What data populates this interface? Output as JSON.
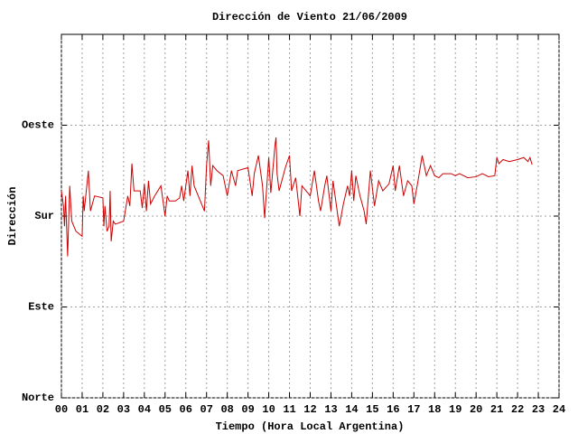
{
  "chart_data": {
    "type": "line",
    "title": "Dirección de Viento 21/06/2009",
    "xlabel": "Tiempo (Hora Local Argentina)",
    "ylabel": "Dirección",
    "color": "#cc0000",
    "grid": true,
    "xlim": [
      0,
      24
    ],
    "xticks": [
      {
        "value": 0,
        "label": "00"
      },
      {
        "value": 1,
        "label": "01"
      },
      {
        "value": 2,
        "label": "02"
      },
      {
        "value": 3,
        "label": "03"
      },
      {
        "value": 4,
        "label": "04"
      },
      {
        "value": 5,
        "label": "05"
      },
      {
        "value": 6,
        "label": "06"
      },
      {
        "value": 7,
        "label": "07"
      },
      {
        "value": 8,
        "label": "08"
      },
      {
        "value": 9,
        "label": "09"
      },
      10,
      11,
      12,
      13,
      14,
      15,
      16,
      17,
      18,
      19,
      20,
      21,
      22,
      23,
      24
    ],
    "ylim": [
      0,
      360
    ],
    "yticks": [
      {
        "value": 0,
        "label": "Norte"
      },
      {
        "value": 90,
        "label": "Este"
      },
      {
        "value": 180,
        "label": "Sur"
      },
      {
        "value": 270,
        "label": "Oeste"
      }
    ],
    "x": [
      0.0,
      0.1,
      0.15,
      0.2,
      0.3,
      0.4,
      0.5,
      0.7,
      1.0,
      1.05,
      1.1,
      1.3,
      1.4,
      1.6,
      2.0,
      2.05,
      2.1,
      2.2,
      2.3,
      2.35,
      2.4,
      2.5,
      2.6,
      3.0,
      3.2,
      3.3,
      3.4,
      3.5,
      3.8,
      3.9,
      4.0,
      4.1,
      4.2,
      4.3,
      4.5,
      4.8,
      5.0,
      5.1,
      5.2,
      5.5,
      5.7,
      5.8,
      5.9,
      6.1,
      6.2,
      6.3,
      6.4,
      6.6,
      6.9,
      7.0,
      7.1,
      7.2,
      7.3,
      7.5,
      7.8,
      8.0,
      8.2,
      8.4,
      8.5,
      9.0,
      9.2,
      9.3,
      9.5,
      9.7,
      9.8,
      10.0,
      10.1,
      10.3,
      10.35,
      10.4,
      10.5,
      10.8,
      11.0,
      11.1,
      11.3,
      11.5,
      11.6,
      11.8,
      12.0,
      12.2,
      12.4,
      12.5,
      12.7,
      12.8,
      13.0,
      13.1,
      13.2,
      13.4,
      13.6,
      13.8,
      13.9,
      14.0,
      14.1,
      14.2,
      14.4,
      14.6,
      14.7,
      14.9,
      15.1,
      15.3,
      15.5,
      15.8,
      16.0,
      16.1,
      16.3,
      16.5,
      16.7,
      16.9,
      17.0,
      17.2,
      17.4,
      17.6,
      17.8,
      18.0,
      18.2,
      18.4,
      18.8,
      19.0,
      19.2,
      19.6,
      20.0,
      20.3,
      20.6,
      20.9,
      21.0,
      21.1,
      21.3,
      21.6,
      22.0,
      22.3,
      22.5,
      22.6,
      22.7
    ],
    "values": [
      205,
      190,
      170,
      200,
      140,
      210,
      175,
      165,
      160,
      200,
      185,
      225,
      185,
      200,
      198,
      170,
      190,
      165,
      170,
      205,
      155,
      175,
      172,
      175,
      200,
      190,
      232,
      205,
      205,
      188,
      212,
      185,
      215,
      192,
      200,
      210,
      180,
      200,
      195,
      195,
      198,
      210,
      195,
      225,
      200,
      230,
      210,
      200,
      185,
      230,
      255,
      210,
      230,
      225,
      220,
      200,
      225,
      210,
      225,
      228,
      200,
      222,
      240,
      210,
      178,
      238,
      203,
      250,
      258,
      222,
      205,
      228,
      240,
      205,
      218,
      180,
      210,
      205,
      200,
      225,
      195,
      185,
      210,
      220,
      185,
      215,
      200,
      170,
      192,
      210,
      200,
      225,
      195,
      220,
      200,
      185,
      172,
      225,
      190,
      215,
      205,
      212,
      230,
      205,
      230,
      200,
      215,
      210,
      192,
      215,
      240,
      220,
      230,
      220,
      218,
      222,
      222,
      220,
      222,
      218,
      219,
      222,
      219,
      220,
      238,
      232,
      236,
      234,
      236,
      238,
      234,
      238,
      231
    ]
  }
}
